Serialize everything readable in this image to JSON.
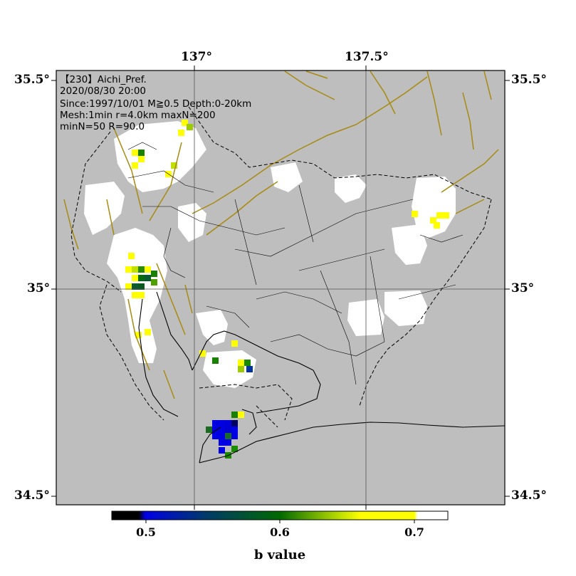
{
  "header": {
    "line1": "【230】Aichi_Pref.",
    "line2": "2020/08/30 20:00",
    "line3": "Since:1997/10/01 M≧0.5 Depth:0-20km",
    "line4": "Mesh:1min r=4.0km maxN=200",
    "line5": "minN=50 R=90.0"
  },
  "axes": {
    "top_lon": [
      "137°",
      "137.5°"
    ],
    "left_lat": [
      "35.5°",
      "35°",
      "34.5°"
    ],
    "right_lat": [
      "35.5°",
      "35°",
      "34.5°"
    ]
  },
  "colorbar": {
    "title": "b value",
    "ticks": [
      "0.5",
      "0.6",
      "0.7"
    ],
    "min": 0.475,
    "max": 0.725,
    "colors": [
      "#000000",
      "#0000e6",
      "#006a00",
      "#ffff00",
      "#ffffff"
    ]
  },
  "colors": {
    "land": "#bebebe",
    "no_data": "#ffffff",
    "fault": "#a88a10",
    "boundary": "#000000"
  }
}
